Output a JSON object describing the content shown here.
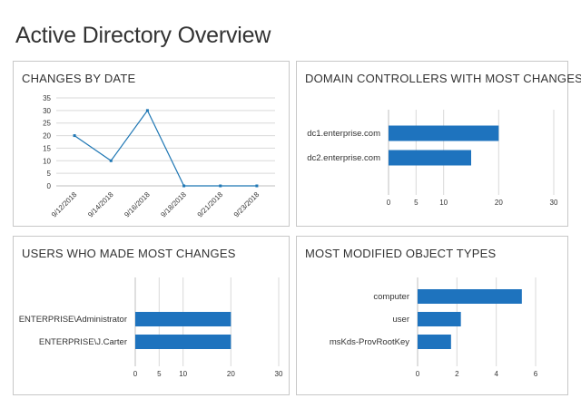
{
  "page": {
    "title": "Active Directory Overview"
  },
  "colors": {
    "series": "#1f77b4",
    "bar": "#1e73be",
    "grid": "#d9d9d9",
    "border": "#c8c8c8"
  },
  "chart_data": [
    {
      "id": "changes-by-date",
      "type": "line",
      "title": "CHANGES BY DATE",
      "x": [
        "9/12/2018",
        "9/14/2018",
        "9/16/2018",
        "9/18/2018",
        "9/21/2018",
        "9/23/2018"
      ],
      "values": [
        20,
        10,
        30,
        0,
        0,
        0
      ],
      "yticks": [
        0,
        5,
        10,
        15,
        20,
        25,
        30,
        35
      ],
      "ylim": [
        0,
        35
      ],
      "grid": true
    },
    {
      "id": "domain-controllers",
      "type": "bar",
      "orientation": "horizontal",
      "title": "DOMAIN CONTROLLERS WITH MOST CHANGES",
      "categories": [
        "dc1.enterprise.com",
        "dc2.enterprise.com"
      ],
      "values": [
        20,
        15
      ],
      "xticks": [
        0,
        5,
        10,
        20,
        30
      ],
      "xlim": [
        0,
        30
      ],
      "grid": true
    },
    {
      "id": "users-most-changes",
      "type": "bar",
      "orientation": "horizontal",
      "title": "USERS WHO MADE MOST CHANGES",
      "categories": [
        "ENTERPRISE\\Administrator",
        "ENTERPRISE\\J.Carter"
      ],
      "values": [
        20,
        20
      ],
      "xticks": [
        0,
        5,
        10,
        20,
        30
      ],
      "xlim": [
        0,
        30
      ],
      "grid": true
    },
    {
      "id": "object-types",
      "type": "bar",
      "orientation": "horizontal",
      "title": "MOST MODIFIED OBJECT TYPES",
      "categories": [
        "computer",
        "user",
        "msKds-ProvRootKey"
      ],
      "values": [
        5.3,
        2.2,
        1.7
      ],
      "xticks": [
        0,
        2,
        4,
        6
      ],
      "xlim": [
        0,
        6
      ],
      "grid": true
    }
  ]
}
